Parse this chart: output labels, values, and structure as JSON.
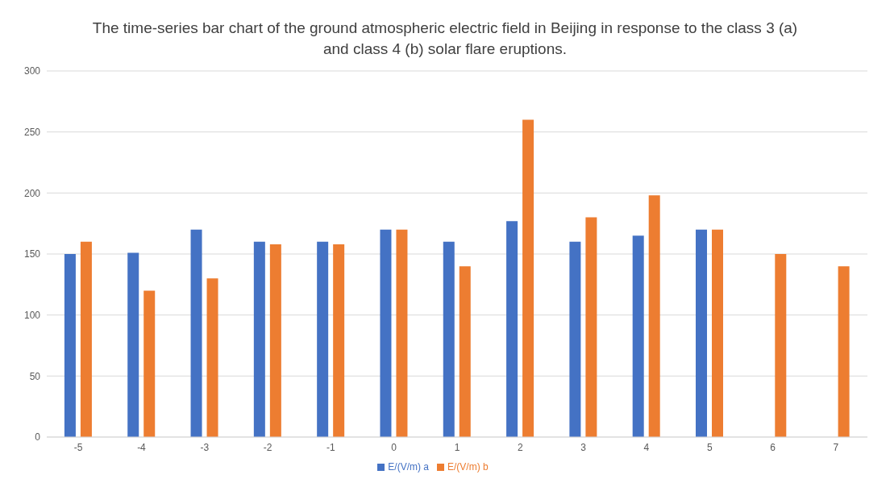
{
  "chart_data": {
    "type": "bar",
    "title": "The time-series bar chart of the ground atmospheric electric field in Beijing in response to the class 3 (a) and class 4 (b) solar flare eruptions.",
    "categories": [
      "-5",
      "-4",
      "-3",
      "-2",
      "-1",
      "0",
      "1",
      "2",
      "3",
      "4",
      "5",
      "6",
      "7"
    ],
    "series": [
      {
        "name": "E/(V/m) a",
        "color": "#4472c4",
        "values": [
          150,
          151,
          170,
          160,
          160,
          170,
          160,
          177,
          160,
          165,
          170,
          null,
          null
        ]
      },
      {
        "name": "E/(V/m) b",
        "color": "#ed7d31",
        "values": [
          160,
          120,
          130,
          158,
          158,
          170,
          140,
          260,
          180,
          198,
          170,
          150,
          140
        ]
      }
    ],
    "ylim": [
      0,
      300
    ],
    "yticks": [
      0,
      50,
      100,
      150,
      200,
      250,
      300
    ],
    "grid": "y",
    "legend": "bottom"
  }
}
